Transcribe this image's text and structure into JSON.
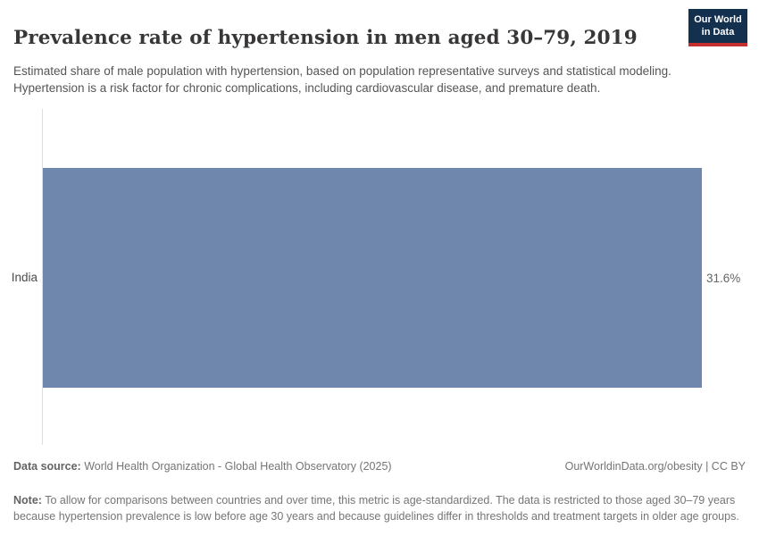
{
  "header": {
    "title": "Prevalence rate of hypertension in men aged 30–79, 2019",
    "subtitle": "Estimated share of male population with hypertension, based on population representative surveys and statistical modeling. Hypertension is a risk factor for chronic complications, including cardiovascular disease, and premature death.",
    "logo": {
      "line1": "Our World",
      "line2": "in Data",
      "bg_color": "#13304f",
      "accent_color": "#c52f2f"
    }
  },
  "chart_data": {
    "type": "bar",
    "orientation": "horizontal",
    "title": "Prevalence rate of hypertension in men aged 30–79, 2019",
    "categories": [
      "India"
    ],
    "values": [
      31.6
    ],
    "value_labels": [
      "31.6%"
    ],
    "xlabel": "",
    "ylabel": "",
    "xlim": [
      0,
      31.6
    ],
    "grid": false,
    "legend": "none",
    "bar_color": "#6f87ad",
    "axis_line_color": "#dedede"
  },
  "footer": {
    "datasource_label": "Data source:",
    "datasource_text": " World Health Organization - Global Health Observatory (2025)",
    "rights": "OurWorldinData.org/obesity | CC BY",
    "note_label": "Note:",
    "note_text": " To allow for comparisons between countries and over time, this metric is age-standardized. The data is restricted to those aged 30–79 years because hypertension prevalence is low before age 30 years and because guidelines differ in thresholds and treatment targets in older age groups."
  }
}
